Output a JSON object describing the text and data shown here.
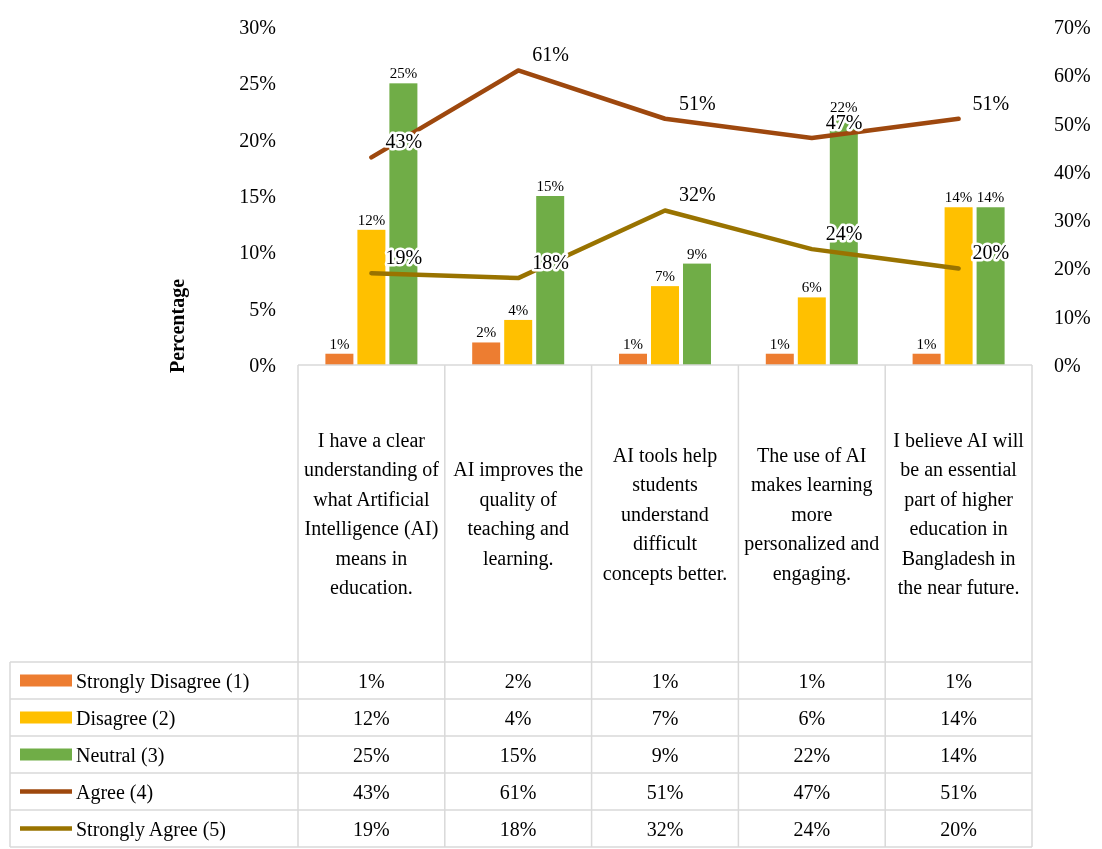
{
  "chart_data": {
    "type": "bar",
    "ylabel": "Percentage",
    "categories": [
      "I have a clear understanding of what Artificial Intelligence (AI) means in education.",
      "AI improves the quality of teaching and learning.",
      "AI tools help students understand difficult concepts better.",
      "The use of AI makes learning more personalized and engaging.",
      "I believe AI will be an essential part of higher education in Bangladesh in the near future."
    ],
    "series": [
      {
        "name": "Strongly Disagree (1)",
        "color": "#ed7d31",
        "values": [
          1,
          2,
          1,
          1,
          1
        ],
        "value_labels": [
          "1%",
          "2%",
          "1%",
          "1%",
          "1%"
        ]
      },
      {
        "name": "Disagree (2)",
        "color": "#ffc000",
        "values": [
          12,
          4,
          7,
          6,
          14
        ],
        "value_labels": [
          "12%",
          "4%",
          "7%",
          "6%",
          "14%"
        ]
      },
      {
        "name": "Neutral (3)",
        "color": "#70ad47",
        "values": [
          25,
          15,
          9,
          22,
          14
        ],
        "value_labels": [
          "25%",
          "15%",
          "9%",
          "22%",
          "14%"
        ]
      },
      {
        "name": "Agree (4)",
        "type": "line",
        "axis": "y2",
        "color": "#9e480e",
        "values": [
          43,
          61,
          51,
          47,
          51
        ],
        "value_labels": [
          "43%",
          "61%",
          "51%",
          "47%",
          "51%"
        ]
      },
      {
        "name": "Strongly Agree (5)",
        "type": "line",
        "axis": "y2",
        "color": "#997300",
        "values": [
          19,
          18,
          32,
          24,
          20
        ],
        "value_labels": [
          "19%",
          "18%",
          "32%",
          "24%",
          "20%"
        ]
      }
    ],
    "ylim": [
      0,
      30
    ],
    "yticks": [
      {
        "value": 0,
        "label": "0%"
      },
      {
        "value": 5,
        "label": "5%"
      },
      {
        "value": 10,
        "label": "10%"
      },
      {
        "value": 15,
        "label": "15%"
      },
      {
        "value": 20,
        "label": "20%"
      },
      {
        "value": 25,
        "label": "25%"
      },
      {
        "value": 30,
        "label": "30%"
      }
    ],
    "y2lim": [
      0,
      70
    ],
    "y2ticks": [
      {
        "value": 0,
        "label": "0%"
      },
      {
        "value": 10,
        "label": "10%"
      },
      {
        "value": 20,
        "label": "20%"
      },
      {
        "value": 30,
        "label": "30%"
      },
      {
        "value": 40,
        "label": "40%"
      },
      {
        "value": 50,
        "label": "50%"
      },
      {
        "value": 60,
        "label": "60%"
      },
      {
        "value": 70,
        "label": "70%"
      }
    ],
    "legend": "bottom",
    "marker": "none",
    "line_style": "solid",
    "grid": false
  }
}
